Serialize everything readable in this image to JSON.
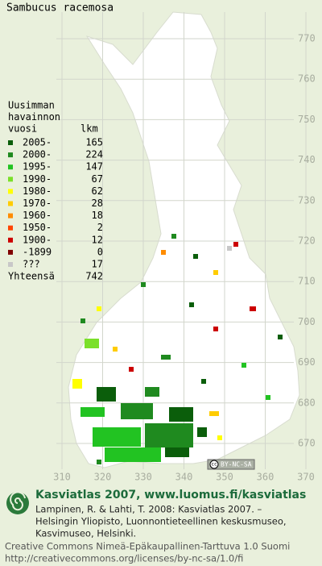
{
  "title": "Sambucus racemosa",
  "legend": {
    "header": [
      "Uusimman",
      "havainnon",
      "vuosi"
    ],
    "count_header": "lkm",
    "rows": [
      {
        "label": "2005-",
        "count": 165,
        "color": "#0b5e0b"
      },
      {
        "label": "2000-",
        "count": 224,
        "color": "#1f8a1f"
      },
      {
        "label": "1995-",
        "count": 147,
        "color": "#22c322"
      },
      {
        "label": "1990-",
        "count": 67,
        "color": "#7be02a"
      },
      {
        "label": "1980-",
        "count": 62,
        "color": "#ffff00"
      },
      {
        "label": "1970-",
        "count": 28,
        "color": "#ffcc00"
      },
      {
        "label": "1960-",
        "count": 18,
        "color": "#ff8c00"
      },
      {
        "label": "1950-",
        "count": 2,
        "color": "#ff4500"
      },
      {
        "label": "1900-",
        "count": 12,
        "color": "#cc0000"
      },
      {
        "label": "-1899",
        "count": 0,
        "color": "#800000"
      },
      {
        "label": "???",
        "count": 17,
        "color": "#c8c8c8"
      }
    ],
    "total_label": "Yhteensä",
    "total": 742
  },
  "grid": {
    "y_labels": [
      770,
      760,
      750,
      740,
      730,
      720,
      710,
      700,
      690,
      680,
      670
    ],
    "x_labels": [
      310,
      320,
      330,
      340,
      350,
      360,
      370
    ]
  },
  "badge": {
    "cc": "cc",
    "text": "BY-NC-SA"
  },
  "footer": {
    "heading": "Kasviatlas 2007, www.luomus.fi/kasviatlas",
    "citation": [
      "Lampinen, R. & Lahti, T. 2008: Kasviatlas 2007. –",
      "Helsingin Yliopisto, Luonnontieteellinen keskusmuseo,",
      "Kasvimuseo, Helsinki."
    ],
    "license": [
      "Creative Commons Nimeä-Epäkaupallinen-Tarttuva 1.0 Suomi",
      "http://creativecommons.org/licenses/by-nc-sa/1.0/fi"
    ]
  }
}
